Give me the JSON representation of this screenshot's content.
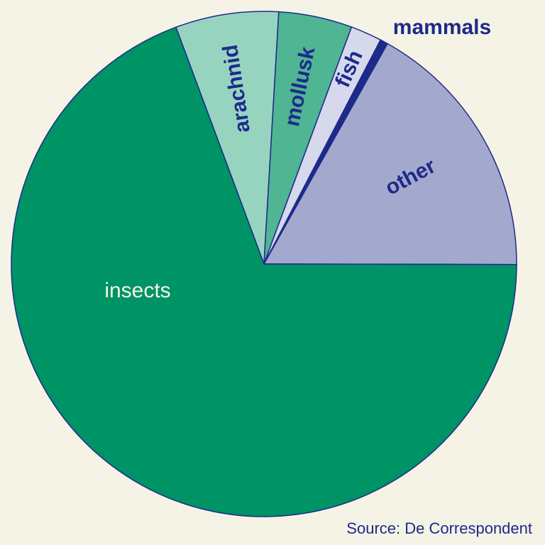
{
  "chart_data": {
    "type": "pie",
    "title": "",
    "start_angle_deg": -20.4,
    "direction": "clockwise",
    "slices": [
      {
        "label": "arachnid",
        "value": 6.6,
        "color": "#97d4c0",
        "label_color": "#1e2a8a"
      },
      {
        "label": "mollusk",
        "value": 4.7,
        "color": "#4fb593",
        "label_color": "#1e2a8a"
      },
      {
        "label": "fish",
        "value": 2.0,
        "color": "#d6d8ec",
        "label_color": "#1e2a8a"
      },
      {
        "label": "mammals",
        "value": 0.5,
        "color": "#1e2a8a",
        "label_color": "#1e2a8a"
      },
      {
        "label": "other",
        "value": 16.9,
        "color": "#a3a9cd",
        "label_color": "#1e2a8a"
      },
      {
        "label": "insects",
        "value": 69.3,
        "color": "#009365",
        "label_color": "#f5f3e6"
      }
    ],
    "legend": "none",
    "annotation": "Source: De Correspondent"
  },
  "colors": {
    "background": "#f5f3e6",
    "outline": "#1e2a8a"
  },
  "source": "Source: De Correspondent"
}
